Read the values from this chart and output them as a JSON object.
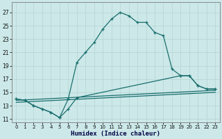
{
  "xlabel": "Humidex (Indice chaleur)",
  "bg_color": "#cce8e8",
  "grid_color": "#b8d8d8",
  "line_color": "#1a6e6e",
  "ylim": [
    10.5,
    28.5
  ],
  "xlim": [
    -0.5,
    23.5
  ],
  "yticks": [
    11,
    13,
    15,
    17,
    19,
    21,
    23,
    25,
    27
  ],
  "xticks": [
    0,
    1,
    2,
    3,
    4,
    5,
    6,
    7,
    8,
    9,
    10,
    11,
    12,
    13,
    14,
    15,
    16,
    17,
    18,
    19,
    20,
    21,
    22,
    23
  ],
  "curve1_x": [
    0,
    1,
    2,
    3,
    4,
    5,
    6,
    7,
    8,
    9,
    10,
    11,
    12,
    13,
    14,
    15,
    16,
    17,
    18,
    19,
    20,
    21,
    22,
    23
  ],
  "curve1_y": [
    14,
    13.8,
    13,
    12.5,
    12,
    11.2,
    14,
    19.5,
    21,
    22.5,
    24.5,
    26,
    27,
    26.5,
    25.5,
    25.5,
    24,
    23.5,
    18.5,
    17.5,
    17.5,
    16,
    15.5,
    15.5
  ],
  "curve2_x": [
    0,
    1,
    2,
    3,
    4,
    5,
    6,
    7,
    19,
    20,
    21,
    22,
    23
  ],
  "curve2_y": [
    14,
    13.8,
    13,
    12.5,
    12,
    11.2,
    12.5,
    14.2,
    17.5,
    17.5,
    16,
    15.5,
    15.5
  ],
  "curve3_x": [
    0,
    23
  ],
  "curve3_y": [
    13.8,
    15.3
  ],
  "curve4_x": [
    0,
    23
  ],
  "curve4_y": [
    13.5,
    15.0
  ]
}
